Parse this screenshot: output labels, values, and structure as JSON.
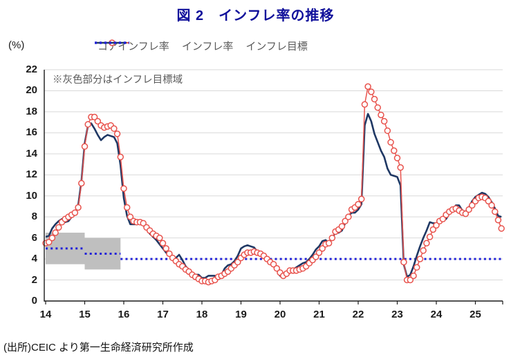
{
  "title": "図 2　インフレ率の推移",
  "title_color": "#10109b",
  "y_unit_label": "(%)",
  "annotation": "※灰色部分はインフレ目標域",
  "source": "(出所)CEIC より第一生命経済研究所作成",
  "legend": [
    {
      "label": "コアインフレ率",
      "style": "line-with-circle-marker",
      "color": "#e8534d"
    },
    {
      "label": "インフレ率",
      "style": "solid-line",
      "color": "#1f3864"
    },
    {
      "label": "インフレ目標",
      "style": "dotted-line",
      "color": "#2222d8"
    }
  ],
  "chart_data": {
    "type": "line",
    "title": "図 2　インフレ率の推移",
    "ylabel": "(%)",
    "ylim": [
      0,
      22
    ],
    "y_ticks": [
      0,
      2,
      4,
      6,
      8,
      10,
      12,
      14,
      16,
      18,
      20,
      22
    ],
    "x_tick_labels": [
      "14",
      "15",
      "16",
      "17",
      "18",
      "19",
      "20",
      "21",
      "22",
      "23",
      "24",
      "25"
    ],
    "x_range": {
      "start": "2014-01",
      "end": "2025-09",
      "frequency": "monthly"
    },
    "grid": true,
    "legend_position": "top",
    "colors": {
      "grid": "#d9d9d9",
      "band": "#bfbfbf",
      "axis": "#1a1a1a"
    },
    "series": [
      {
        "name": "コアインフレ率",
        "color": "#e8534d",
        "marker": "open-circle",
        "values": [
          5.5,
          5.6,
          6.0,
          6.5,
          7.0,
          7.5,
          7.8,
          8.0,
          8.2,
          8.4,
          8.9,
          11.2,
          14.7,
          16.8,
          17.5,
          17.5,
          17.1,
          16.7,
          16.5,
          16.6,
          16.7,
          16.4,
          15.9,
          13.7,
          10.7,
          8.9,
          8.0,
          7.6,
          7.5,
          7.5,
          7.4,
          7.0,
          6.7,
          6.4,
          6.2,
          6.0,
          5.5,
          5.0,
          4.5,
          4.1,
          3.8,
          3.5,
          3.3,
          3.0,
          2.8,
          2.5,
          2.3,
          2.1,
          1.9,
          1.9,
          1.8,
          1.9,
          2.0,
          2.3,
          2.4,
          2.6,
          2.8,
          3.1,
          3.4,
          3.7,
          4.1,
          4.4,
          4.6,
          4.6,
          4.7,
          4.6,
          4.5,
          4.3,
          4.0,
          3.7,
          3.5,
          3.1,
          2.7,
          2.4,
          2.6,
          2.9,
          2.9,
          2.9,
          3.0,
          3.1,
          3.3,
          3.6,
          3.9,
          4.2,
          4.6,
          5.0,
          5.4,
          5.5,
          6.0,
          6.6,
          6.8,
          7.1,
          7.6,
          8.0,
          8.7,
          8.9,
          9.2,
          9.7,
          18.7,
          20.4,
          19.9,
          19.2,
          18.4,
          17.7,
          17.1,
          16.2,
          15.1,
          14.3,
          13.6,
          12.7,
          3.7,
          2.0,
          2.0,
          2.4,
          3.2,
          4.0,
          4.8,
          5.5,
          6.1,
          6.8,
          7.2,
          7.6,
          7.8,
          8.2,
          8.5,
          8.7,
          8.8,
          8.6,
          8.4,
          8.3,
          8.7,
          9.1,
          9.5,
          9.8,
          9.9,
          9.8,
          9.5,
          9.1,
          8.5,
          7.7,
          6.9
        ]
      },
      {
        "name": "インフレ率",
        "color": "#1f3864",
        "marker": "none",
        "values": [
          6.1,
          6.2,
          6.9,
          7.3,
          7.6,
          7.8,
          7.5,
          7.6,
          8.0,
          8.3,
          9.1,
          11.4,
          15.0,
          16.7,
          16.9,
          16.4,
          15.8,
          15.3,
          15.6,
          15.8,
          15.7,
          15.6,
          15.0,
          12.9,
          9.8,
          8.1,
          7.3,
          7.3,
          7.3,
          7.5,
          7.2,
          6.9,
          6.4,
          6.1,
          5.8,
          5.4,
          5.0,
          4.6,
          4.3,
          4.1,
          4.1,
          4.4,
          3.9,
          3.3,
          3.0,
          2.7,
          2.5,
          2.5,
          2.2,
          2.2,
          2.4,
          2.4,
          2.4,
          2.3,
          2.5,
          3.1,
          3.4,
          3.5,
          3.8,
          4.3,
          5.0,
          5.2,
          5.3,
          5.2,
          5.1,
          4.7,
          4.6,
          4.3,
          4.0,
          3.8,
          3.5,
          3.0,
          2.4,
          2.3,
          2.5,
          3.1,
          3.0,
          3.2,
          3.4,
          3.6,
          3.7,
          4.0,
          4.4,
          4.9,
          5.2,
          5.7,
          5.8,
          5.5,
          6.0,
          6.5,
          6.5,
          6.7,
          7.4,
          8.1,
          8.4,
          8.4,
          8.7,
          9.2,
          16.7,
          17.8,
          17.1,
          15.9,
          15.1,
          14.3,
          13.7,
          12.6,
          12.0,
          11.9,
          11.8,
          11.0,
          3.5,
          2.3,
          2.5,
          3.3,
          4.3,
          5.2,
          6.0,
          6.7,
          7.5,
          7.4,
          7.4,
          7.7,
          7.7,
          7.8,
          8.3,
          8.6,
          9.1,
          9.1,
          8.6,
          8.5,
          8.9,
          9.5,
          9.9,
          10.1,
          10.3,
          10.2,
          9.9,
          9.4,
          8.8,
          8.1,
          8.0
        ]
      }
    ],
    "inflation_target": {
      "name": "インフレ目標",
      "color": "#2222d8",
      "segments": [
        {
          "start_index": 0,
          "end_index": 12,
          "value": 5.0
        },
        {
          "start_index": 12,
          "end_index": 23,
          "value": 4.5
        },
        {
          "start_index": 23,
          "end_index": 140,
          "value": 4.0
        }
      ]
    },
    "target_bands": [
      {
        "start_index": 0,
        "end_index": 12,
        "low": 3.5,
        "high": 6.5
      },
      {
        "start_index": 12,
        "end_index": 23,
        "low": 3.0,
        "high": 6.0
      }
    ]
  }
}
